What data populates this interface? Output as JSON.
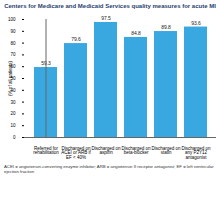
{
  "chart_data": {
    "type": "bar",
    "title": "Centers for Medicare and Medicaid Services quality measures for acute MI",
    "y_label": "(% of all patients)",
    "categories": [
      "Referred for rehabilitation",
      "Discharged on ACEI or ARB if EF < 40%",
      "Discharged on aspirin",
      "Discharged on beta-blocker",
      "Discharged on statin",
      "Discharged on any P2Y12 antagonist"
    ],
    "values": [
      59.3,
      79.6,
      97.5,
      84.8,
      89.8,
      93.6
    ],
    "color": "#3aa8e0",
    "ylim": [
      0,
      100
    ],
    "yticks": [
      0,
      10,
      20,
      30,
      40,
      50,
      60,
      70,
      80,
      90,
      100
    ],
    "grid": false,
    "data_labels": true,
    "caption": "ACEI = angiotensin-converting enzyme inhibitor; ARB = angiotensin II receptor antagonist; EF = left ventricular ejection fraction"
  }
}
